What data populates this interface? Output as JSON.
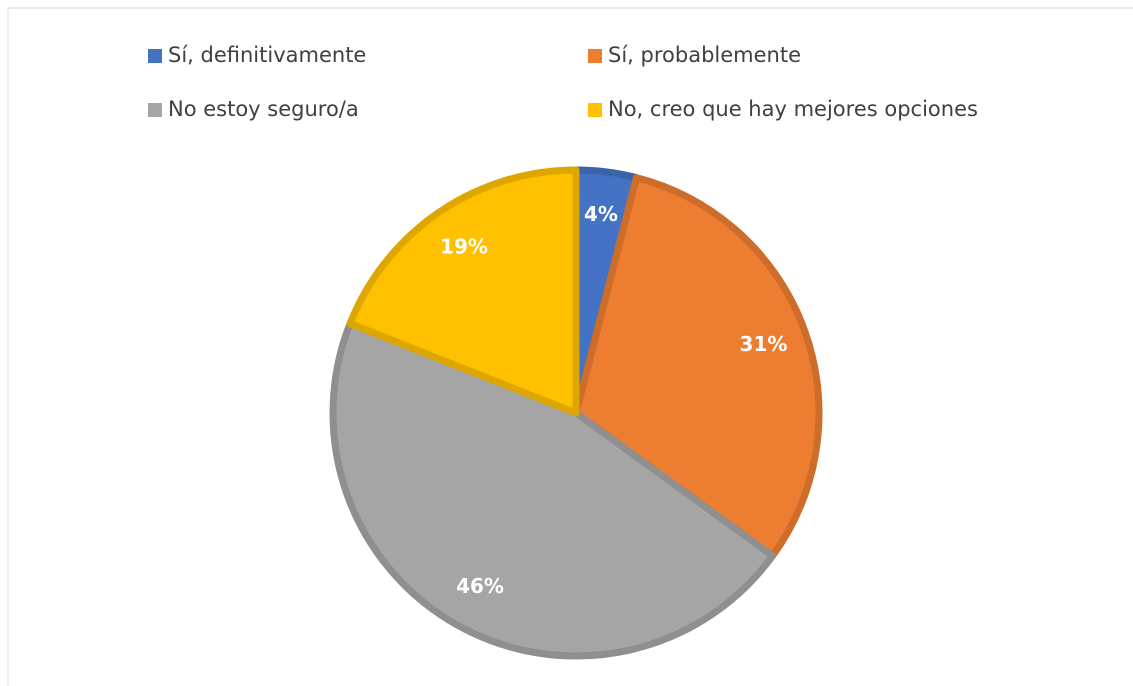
{
  "chart_data": {
    "type": "pie",
    "categories": [
      "Sí, definitivamente",
      "Sí, probablemente",
      "No estoy seguro/a",
      "No, creo que hay mejores opciones"
    ],
    "values": [
      4,
      31,
      46,
      19
    ],
    "value_labels": [
      "4%",
      "31%",
      "46%",
      "19%"
    ],
    "colors": [
      "#4472c4",
      "#ed7d31",
      "#a5a5a5",
      "#ffc000"
    ],
    "legend": "top"
  }
}
